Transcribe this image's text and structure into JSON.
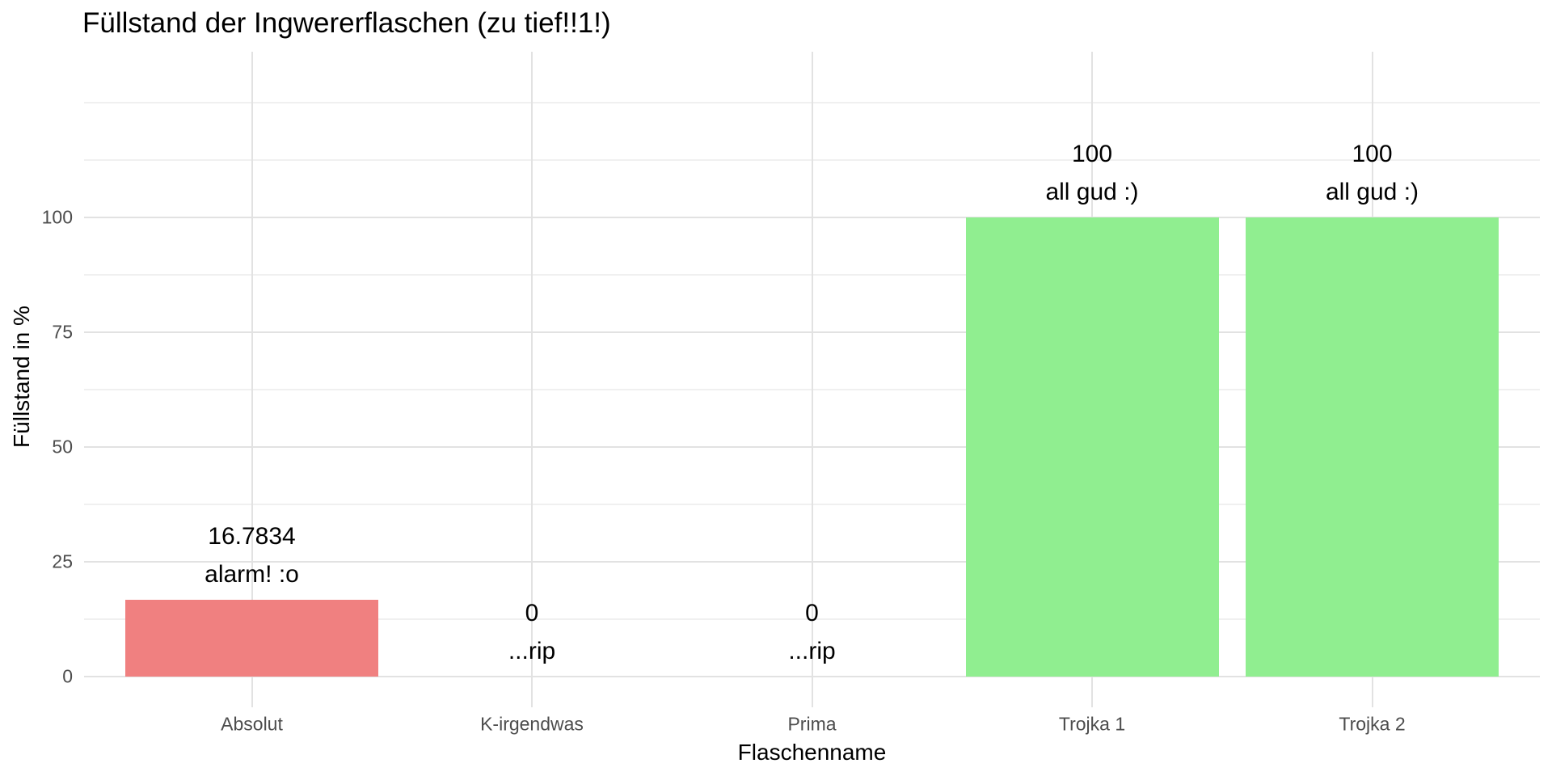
{
  "title": "Füllstand der Ingwererflaschen (zu tief!!1!)",
  "chart_data": {
    "type": "bar",
    "title": "Füllstand der Ingwererflaschen (zu tief!!1!)",
    "xlabel": "Flaschenname",
    "ylabel": "Füllstand in %",
    "categories": [
      "Absolut",
      "K-irgendwas",
      "Prima",
      "Trojka 1",
      "Trojka 2"
    ],
    "values": [
      16.7834,
      0,
      0,
      100,
      100
    ],
    "value_labels": [
      "16.7834",
      "0",
      "0",
      "100",
      "100"
    ],
    "message_labels": [
      "alarm! :o",
      "...rip",
      "...rip",
      "all gud :)",
      "all gud :)"
    ],
    "bar_colors": [
      "#F08080",
      "#F08080",
      "#F08080",
      "#90EE90",
      "#90EE90"
    ],
    "y_ticks": [
      0,
      25,
      50,
      75,
      100
    ],
    "y_tick_labels": [
      "0",
      "25",
      "50",
      "75",
      "100"
    ],
    "y_minor_gridlines": [
      12.5,
      37.5,
      62.5,
      87.5,
      112.5,
      125
    ],
    "ylim": [
      -7,
      137
    ],
    "grid": true,
    "legend": false,
    "colors": {
      "background": "#FFFFFF",
      "bar_alarm": "#F08080",
      "bar_ok": "#90EE90",
      "grid_major": "#E2E2E2",
      "grid_minor": "#F0F0F0",
      "tick_text": "#4D4D4D",
      "text": "#000000"
    }
  }
}
